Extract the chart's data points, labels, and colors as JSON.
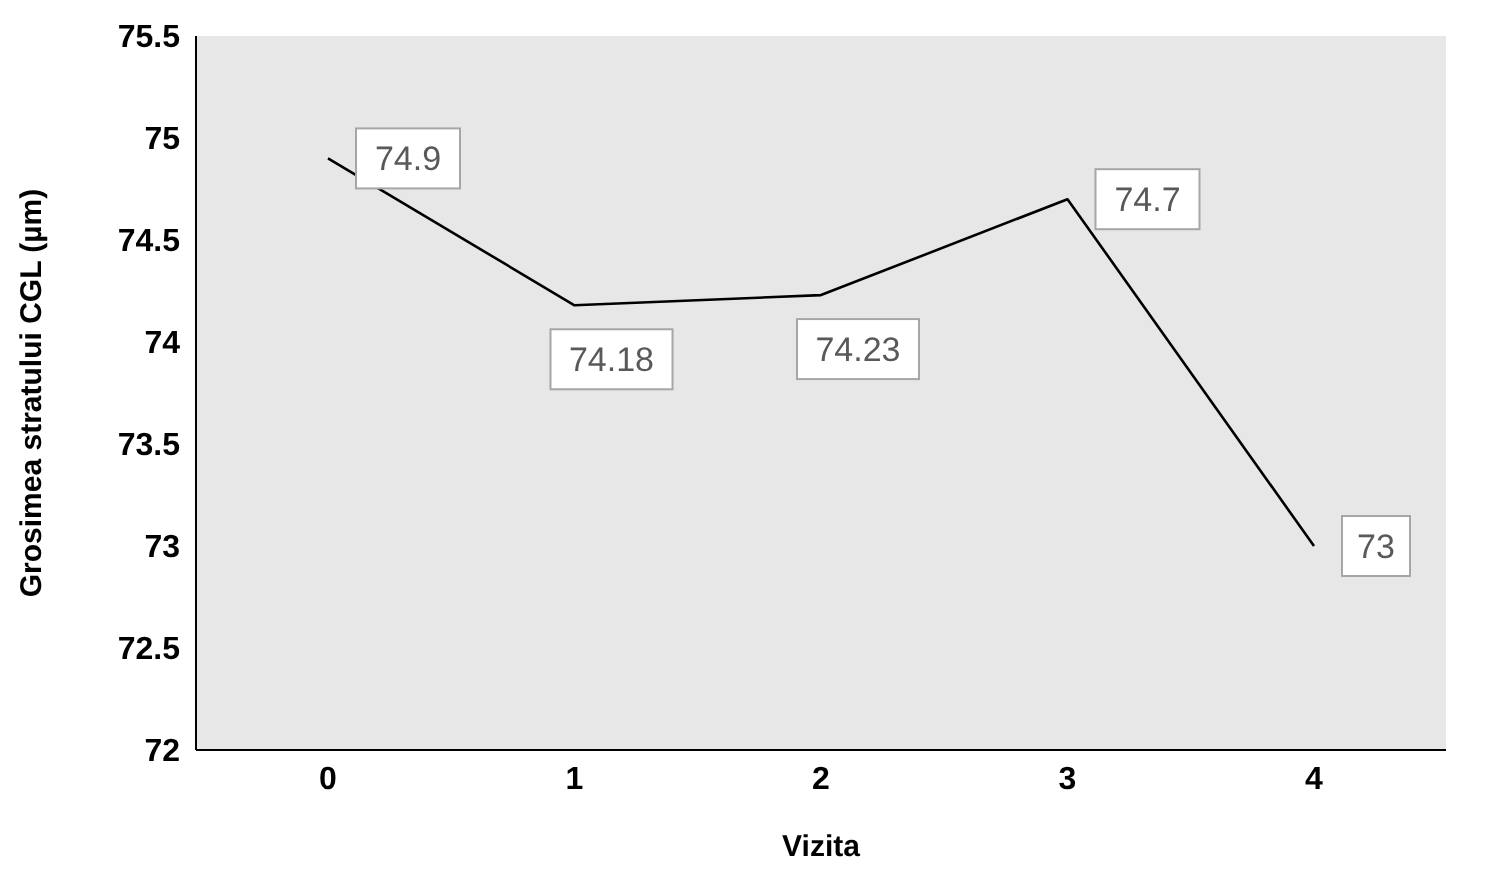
{
  "chart_data": {
    "type": "line",
    "xlabel": "Vizita",
    "ylabel": "Grosimea stratului CGL (µm)",
    "categories": [
      "0",
      "1",
      "2",
      "3",
      "4"
    ],
    "series": [
      {
        "color": "#000000",
        "values": [
          74.9,
          74.18,
          74.23,
          74.7,
          73
        ]
      }
    ],
    "ylim": [
      72,
      75.5
    ],
    "yticks": [
      72,
      72.5,
      73,
      73.5,
      74,
      74.5,
      75,
      75.5
    ],
    "grid": false,
    "marker": "none",
    "line_style": "solid",
    "data_labels": true
  }
}
